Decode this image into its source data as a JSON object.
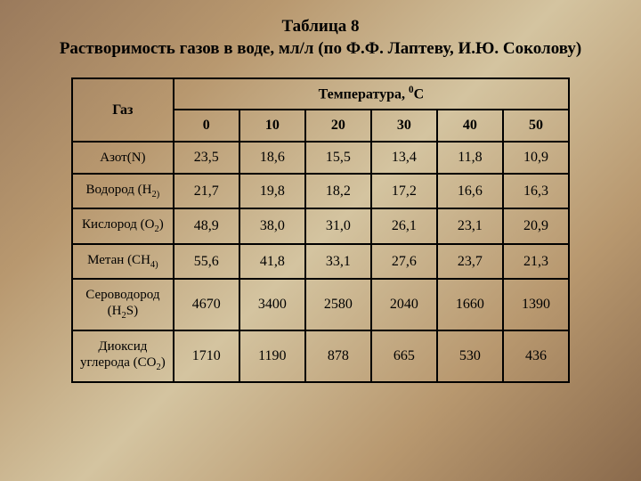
{
  "title": "Таблица 8\nРастворимость газов в воде, мл/л (по Ф.Ф. Лаптеву, И.Ю. Соколову)",
  "table": {
    "gas_header": "Газ",
    "temp_header": "Температура, ",
    "temp_unit_sup": "0",
    "temp_unit": "С",
    "columns": [
      "0",
      "10",
      "20",
      "30",
      "40",
      "50"
    ],
    "rows": [
      {
        "name": "Азот(N)",
        "sub": "",
        "values": [
          "23,5",
          "18,6",
          "15,5",
          "13,4",
          "11,8",
          "10,9"
        ]
      },
      {
        "name": "Водород (Н",
        "sub": "2)",
        "values": [
          "21,7",
          "19,8",
          "18,2",
          "17,2",
          "16,6",
          "16,3"
        ]
      },
      {
        "name": "Кислород (О",
        "sub": "2",
        "tail": ")",
        "values": [
          "48,9",
          "38,0",
          "31,0",
          "26,1",
          "23,1",
          "20,9"
        ]
      },
      {
        "name": "Метан (СН",
        "sub": "4)",
        "values": [
          "55,6",
          "41,8",
          "33,1",
          "27,6",
          "23,7",
          "21,3"
        ]
      },
      {
        "name": "Сероводород (Н",
        "sub": "2",
        "tail": "S)",
        "values": [
          "4670",
          "3400",
          "2580",
          "2040",
          "1660",
          "1390"
        ]
      },
      {
        "name": "Диоксид углерода (СО",
        "sub": "2",
        "tail": ")",
        "values": [
          "1710",
          "1190",
          "878",
          "665",
          "530",
          "436"
        ]
      }
    ]
  },
  "colors": {
    "border": "#000000",
    "text": "#000000",
    "bg_gradient_start": "#9a7a5c",
    "bg_gradient_mid": "#d4c4a0",
    "bg_gradient_end": "#8a6a4c"
  }
}
